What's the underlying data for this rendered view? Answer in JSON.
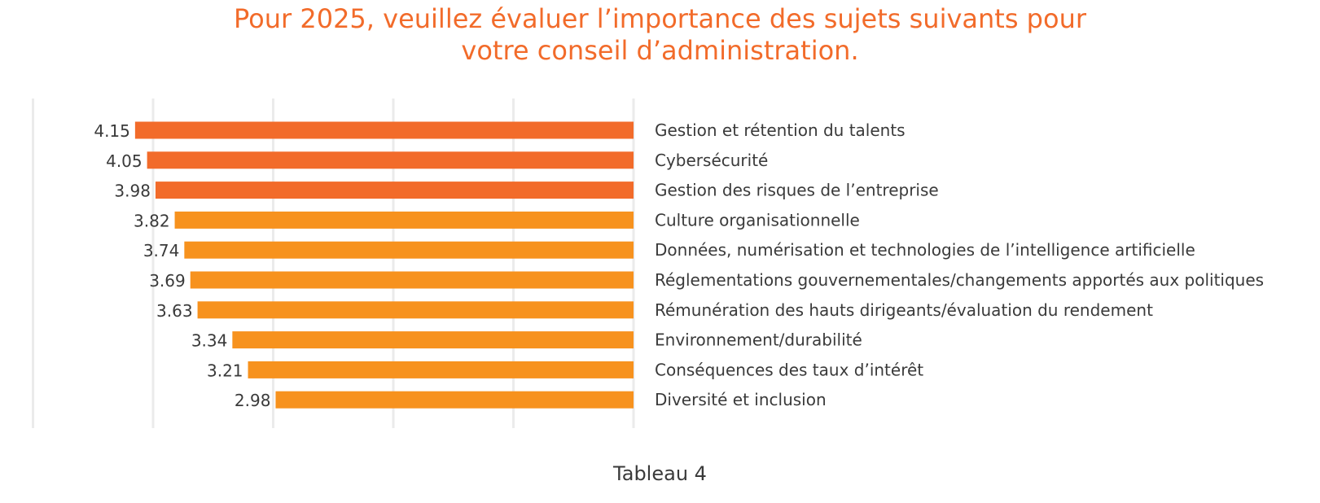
{
  "chart_data": {
    "type": "bar",
    "orientation": "horizontal",
    "direction": "right-to-left",
    "title_lines": [
      "Pour 2025, veuillez évaluer l’importance des sujets suivants pour",
      "votre conseil d’administration."
    ],
    "caption": "Tableau 4",
    "xlim": [
      0,
      5
    ],
    "grid": true,
    "categories": [
      "Gestion et rétention du talents",
      "Cybersécurité",
      "Gestion des risques de l’entreprise",
      "Culture organisationnelle",
      "Données, numérisation et technologies de l’intelligence artificielle",
      "Réglementations gouvernementales/changements apportés aux politiques",
      "Rémunération des hauts dirigeants/évaluation du rendement",
      "Environnement/durabilité",
      "Conséquences des taux d’intérêt",
      "Diversité et inclusion"
    ],
    "values": [
      4.15,
      4.05,
      3.98,
      3.82,
      3.74,
      3.69,
      3.63,
      3.34,
      3.21,
      2.98
    ],
    "value_labels": [
      "4.15",
      "4.05",
      "3.98",
      "3.82",
      "3.74",
      "3.69",
      "3.63",
      "3.34",
      "3.21",
      "2.98"
    ],
    "colors": {
      "top3": "#f26b2a",
      "others": "#f7921e",
      "grid": "#ebebeb",
      "text": "#3a3a3a",
      "title": "#f26b2a"
    }
  }
}
